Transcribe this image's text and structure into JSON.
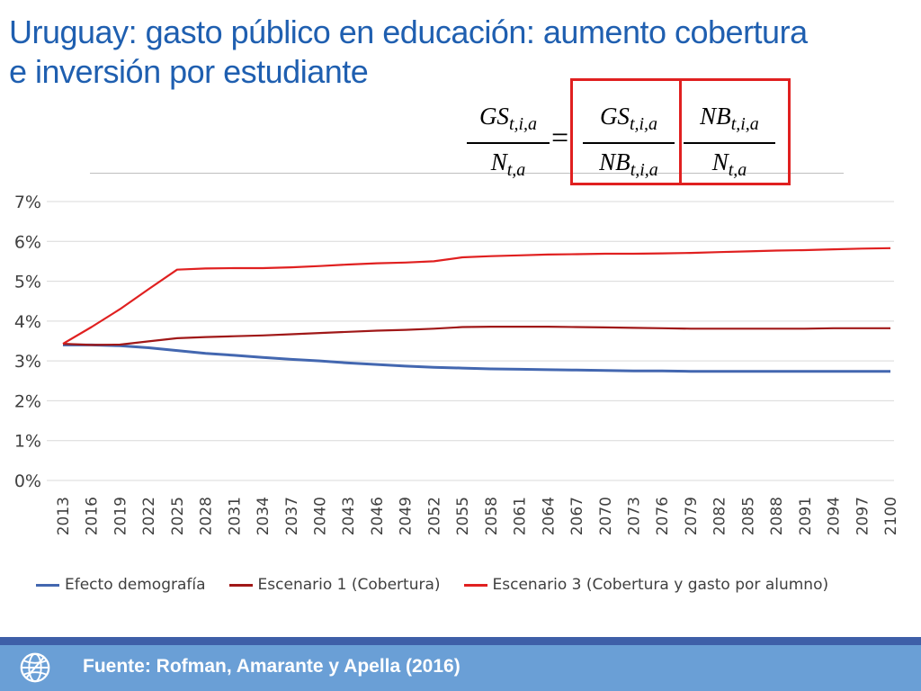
{
  "title_line1": "Uruguay: gasto público en educación: aumento cobertura",
  "title_line2": "e inversión por estudiante",
  "formula": {
    "lhs_num": "GS",
    "lhs_num_sub": "t,i,a",
    "lhs_den": "N",
    "lhs_den_sub": "t,a",
    "eq": "=",
    "f1_num": "GS",
    "f1_num_sub": "t,i,a",
    "f1_den": "NB",
    "f1_den_sub": "t,i,a",
    "f2_num": "NB",
    "f2_num_sub": "t,i,a",
    "f2_den": "N",
    "f2_den_sub": "t,a",
    "box_color": "#e02020"
  },
  "chart_data": {
    "type": "line",
    "x": [
      2013,
      2016,
      2019,
      2022,
      2025,
      2028,
      2031,
      2034,
      2037,
      2040,
      2043,
      2046,
      2049,
      2052,
      2055,
      2058,
      2061,
      2064,
      2067,
      2070,
      2073,
      2076,
      2079,
      2082,
      2085,
      2088,
      2091,
      2094,
      2097,
      2100
    ],
    "series": [
      {
        "name": "Efecto demografía",
        "color": "#4367b0",
        "values": [
          3.4,
          3.4,
          3.38,
          3.33,
          3.26,
          3.19,
          3.14,
          3.09,
          3.04,
          3.0,
          2.95,
          2.91,
          2.87,
          2.84,
          2.82,
          2.8,
          2.79,
          2.78,
          2.77,
          2.76,
          2.75,
          2.75,
          2.74,
          2.74,
          2.74,
          2.74,
          2.74,
          2.74,
          2.74,
          2.74
        ]
      },
      {
        "name": "Escenario 1 (Cobertura)",
        "color": "#a01818",
        "values": [
          3.43,
          3.4,
          3.41,
          3.49,
          3.57,
          3.6,
          3.62,
          3.64,
          3.67,
          3.7,
          3.73,
          3.76,
          3.78,
          3.81,
          3.85,
          3.86,
          3.86,
          3.86,
          3.85,
          3.84,
          3.83,
          3.82,
          3.81,
          3.81,
          3.81,
          3.81,
          3.81,
          3.82,
          3.82,
          3.82
        ]
      },
      {
        "name": "Escenario 3 (Cobertura y gasto por alumno)",
        "color": "#e02020",
        "values": [
          3.43,
          3.85,
          4.3,
          4.8,
          5.29,
          5.32,
          5.33,
          5.33,
          5.35,
          5.38,
          5.42,
          5.45,
          5.47,
          5.5,
          5.6,
          5.63,
          5.65,
          5.67,
          5.68,
          5.69,
          5.69,
          5.7,
          5.71,
          5.73,
          5.75,
          5.77,
          5.78,
          5.8,
          5.82,
          5.83
        ]
      }
    ],
    "y_ticks": [
      "0%",
      "1%",
      "2%",
      "3%",
      "4%",
      "5%",
      "6%",
      "7%"
    ],
    "ylim": [
      0,
      7
    ],
    "grid": true,
    "legend_position": "bottom"
  },
  "footer": {
    "source": "Fuente: Rofman, Amarante y Apella (2016)",
    "icon": "globe-icon"
  }
}
